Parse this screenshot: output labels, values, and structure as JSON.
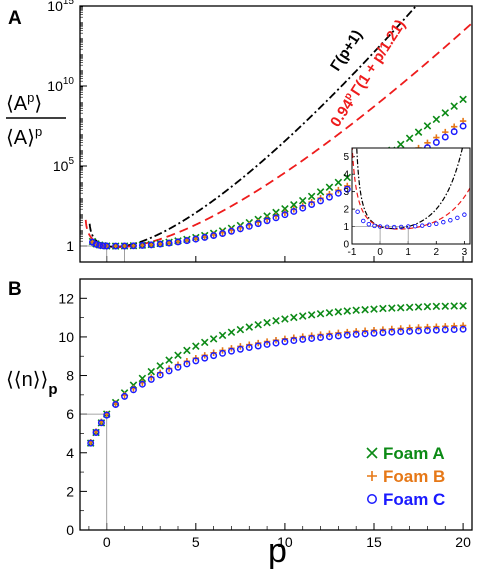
{
  "colors": {
    "foam_a": "#0c8a16",
    "foam_b": "#e67817",
    "foam_c": "#1a1aff",
    "fit": "#ee1c1c",
    "gamma": "#000000"
  },
  "chart_data": [
    {
      "panel": "A",
      "type": "scatter",
      "ylabel_num": "⟨A",
      "ylabel_num_sup": "p",
      "ylabel_num_end": "⟩",
      "ylabel_den": "⟨A⟩",
      "ylabel_den_sup": "p",
      "y_scale": "log",
      "ylim": [
        0.1,
        1000000000000000.0
      ],
      "xlim": [
        -1.5,
        20.5
      ],
      "y_ticks": [
        {
          "v": 1,
          "label": "1"
        },
        {
          "v": 100000,
          "label": "10",
          "sup": "5"
        },
        {
          "v": 10000000000,
          "label": "10",
          "sup": "10"
        },
        {
          "v": 1000000000000000.0,
          "label": "10",
          "sup": "15"
        }
      ],
      "curve_labels": {
        "gamma": "Γ(p+1)",
        "fit": "0.94",
        "fit_sup": "p",
        "fit_end": "Γ(1 + p/1.21)"
      },
      "series": [
        {
          "name": "Foam A",
          "marker": "x",
          "x": [
            -0.8,
            -0.6,
            -0.4,
            -0.2,
            0,
            0.5,
            1,
            1.5,
            2,
            2.5,
            3,
            3.5,
            4,
            4.5,
            5,
            5.5,
            6,
            6.5,
            7,
            7.5,
            8,
            8.5,
            9,
            9.5,
            10,
            10.5,
            11,
            11.5,
            12,
            12.5,
            13,
            13.5,
            14,
            14.5,
            15,
            15.5,
            16,
            16.5,
            17,
            17.5,
            18,
            18.5,
            19,
            19.5,
            20
          ],
          "y": [
            1.9,
            1.35,
            1.15,
            1.05,
            1,
            0.985,
            1,
            1.04,
            1.12,
            1.25,
            1.44,
            1.7,
            2.1,
            2.6,
            3.4,
            4.5,
            6.2,
            8.8,
            12.8,
            19,
            29,
            46,
            75,
            125,
            214,
            376,
            680,
            1260,
            2400,
            4700,
            9400,
            19300,
            40500,
            87000,
            190000,
            425000,
            970000,
            2260000,
            5380000,
            13000000,
            32300000,
            81500000,
            209000000,
            547000000,
            1460000000
          ]
        },
        {
          "name": "Foam B",
          "marker": "+",
          "x": [
            -0.8,
            -0.6,
            -0.4,
            -0.2,
            0,
            0.5,
            1,
            1.5,
            2,
            2.5,
            3,
            3.5,
            4,
            4.5,
            5,
            5.5,
            6,
            6.5,
            7,
            7.5,
            8,
            8.5,
            9,
            9.5,
            10,
            10.5,
            11,
            11.5,
            12,
            12.5,
            13,
            13.5,
            14,
            14.5,
            15,
            15.5,
            16,
            16.5,
            17,
            17.5,
            18,
            18.5,
            19,
            19.5,
            20
          ],
          "y": [
            1.8,
            1.3,
            1.12,
            1.04,
            1,
            0.988,
            1,
            1.035,
            1.1,
            1.21,
            1.37,
            1.6,
            1.93,
            2.35,
            2.97,
            3.85,
            5.1,
            7,
            9.8,
            14,
            20.5,
            30.8,
            47,
            74,
            119,
            195,
            327,
            558,
            970,
            1720,
            3110,
            5710,
            10700,
            20400,
            39400,
            77400,
            154000,
            312000,
            640000,
            1330000,
            2810000,
            6020000,
            13100000,
            28800000,
            64000000
          ]
        },
        {
          "name": "Foam C",
          "marker": "o",
          "x": [
            -0.8,
            -0.6,
            -0.4,
            -0.2,
            0,
            0.5,
            1,
            1.5,
            2,
            2.5,
            3,
            3.5,
            4,
            4.5,
            5,
            5.5,
            6,
            6.5,
            7,
            7.5,
            8,
            8.5,
            9,
            9.5,
            10,
            10.5,
            11,
            11.5,
            12,
            12.5,
            13,
            13.5,
            14,
            14.5,
            15,
            15.5,
            16,
            16.5,
            17,
            17.5,
            18,
            18.5,
            19,
            19.5,
            20
          ],
          "y": [
            1.75,
            1.28,
            1.1,
            1.03,
            1,
            0.99,
            1,
            1.03,
            1.09,
            1.18,
            1.32,
            1.52,
            1.8,
            2.17,
            2.7,
            3.45,
            4.5,
            6.05,
            8.35,
            11.8,
            17,
            25,
            37.6,
            57.7,
            90.2,
            144,
            234,
            389,
            658,
            1130,
            1990,
            3540,
            6430,
            11900,
            22300,
            42700,
            83100,
            164000,
            331000,
            677000,
            1410000,
            2990000,
            6440000,
            14100000,
            31300000
          ]
        }
      ],
      "inset": {
        "xlim": [
          -1,
          3.2
        ],
        "ylim": [
          0,
          5.5
        ],
        "x_ticks": [
          -1,
          0,
          1,
          2,
          3
        ],
        "y_ticks": [
          0,
          1,
          2,
          3,
          4,
          5
        ],
        "points": {
          "x": [
            -0.8,
            -0.6,
            -0.4,
            -0.2,
            0,
            0.25,
            0.5,
            0.75,
            1,
            1.25,
            1.5,
            1.75,
            2,
            2.25,
            2.5,
            2.75,
            3
          ],
          "y": [
            1.85,
            1.32,
            1.13,
            1.04,
            1,
            0.98,
            0.97,
            0.975,
            1,
            1.02,
            1.05,
            1.1,
            1.16,
            1.25,
            1.36,
            1.5,
            1.68
          ]
        }
      }
    },
    {
      "panel": "B",
      "type": "scatter",
      "ylabel": "⟨⟨n⟩⟩",
      "ylabel_sub": "p",
      "xlabel": "p",
      "xlim": [
        -1.5,
        20.5
      ],
      "ylim": [
        0,
        13
      ],
      "x_ticks": [
        0,
        5,
        10,
        15,
        20
      ],
      "y_ticks": [
        0,
        2,
        4,
        6,
        8,
        10,
        12
      ],
      "legend_position": "bottom-right",
      "series": [
        {
          "name": "Foam A",
          "marker": "x",
          "x": [
            -0.9,
            -0.6,
            -0.3,
            0,
            0.5,
            1,
            1.5,
            2,
            2.5,
            3,
            3.5,
            4,
            4.5,
            5,
            5.5,
            6,
            6.5,
            7,
            7.5,
            8,
            8.5,
            9,
            9.5,
            10,
            10.5,
            11,
            11.5,
            12,
            12.5,
            13,
            13.5,
            14,
            14.5,
            15,
            15.5,
            16,
            16.5,
            17,
            17.5,
            18,
            18.5,
            19,
            19.5,
            20
          ],
          "y": [
            4.5,
            5.05,
            5.55,
            6,
            6.6,
            7.1,
            7.5,
            7.85,
            8.2,
            8.5,
            8.8,
            9.05,
            9.3,
            9.52,
            9.72,
            9.9,
            10.08,
            10.24,
            10.38,
            10.51,
            10.63,
            10.74,
            10.84,
            10.93,
            11.01,
            11.08,
            11.14,
            11.2,
            11.25,
            11.3,
            11.34,
            11.38,
            11.41,
            11.44,
            11.47,
            11.49,
            11.51,
            11.53,
            11.55,
            11.57,
            11.58,
            11.59,
            11.6,
            11.61
          ]
        },
        {
          "name": "Foam B",
          "marker": "+",
          "x": [
            -0.9,
            -0.6,
            -0.3,
            0,
            0.5,
            1,
            1.5,
            2,
            2.5,
            3,
            3.5,
            4,
            4.5,
            5,
            5.5,
            6,
            6.5,
            7,
            7.5,
            8,
            8.5,
            9,
            9.5,
            10,
            10.5,
            11,
            11.5,
            12,
            12.5,
            13,
            13.5,
            14,
            14.5,
            15,
            15.5,
            16,
            16.5,
            17,
            17.5,
            18,
            18.5,
            19,
            19.5,
            20
          ],
          "y": [
            4.55,
            5.1,
            5.6,
            6,
            6.55,
            6.98,
            7.33,
            7.63,
            7.9,
            8.14,
            8.36,
            8.56,
            8.74,
            8.9,
            9.05,
            9.18,
            9.3,
            9.41,
            9.51,
            9.6,
            9.68,
            9.76,
            9.83,
            9.9,
            9.96,
            10.02,
            10.07,
            10.12,
            10.17,
            10.21,
            10.25,
            10.29,
            10.32,
            10.35,
            10.38,
            10.41,
            10.44,
            10.47,
            10.49,
            10.51,
            10.53,
            10.55,
            10.57,
            10.59
          ]
        },
        {
          "name": "Foam C",
          "marker": "o",
          "x": [
            -0.9,
            -0.6,
            -0.3,
            0,
            0.5,
            1,
            1.5,
            2,
            2.5,
            3,
            3.5,
            4,
            4.5,
            5,
            5.5,
            6,
            6.5,
            7,
            7.5,
            8,
            8.5,
            9,
            9.5,
            10,
            10.5,
            11,
            11.5,
            12,
            12.5,
            13,
            13.5,
            14,
            14.5,
            15,
            15.5,
            16,
            16.5,
            17,
            17.5,
            18,
            18.5,
            19,
            19.5,
            20
          ],
          "y": [
            4.5,
            5.05,
            5.55,
            5.95,
            6.5,
            6.92,
            7.26,
            7.55,
            7.8,
            8.03,
            8.24,
            8.43,
            8.6,
            8.76,
            8.9,
            9.03,
            9.15,
            9.26,
            9.36,
            9.45,
            9.53,
            9.61,
            9.68,
            9.75,
            9.81,
            9.87,
            9.92,
            9.97,
            10.01,
            10.05,
            10.09,
            10.13,
            10.16,
            10.19,
            10.22,
            10.25,
            10.27,
            10.29,
            10.31,
            10.33,
            10.35,
            10.37,
            10.38,
            10.4
          ]
        }
      ]
    }
  ]
}
